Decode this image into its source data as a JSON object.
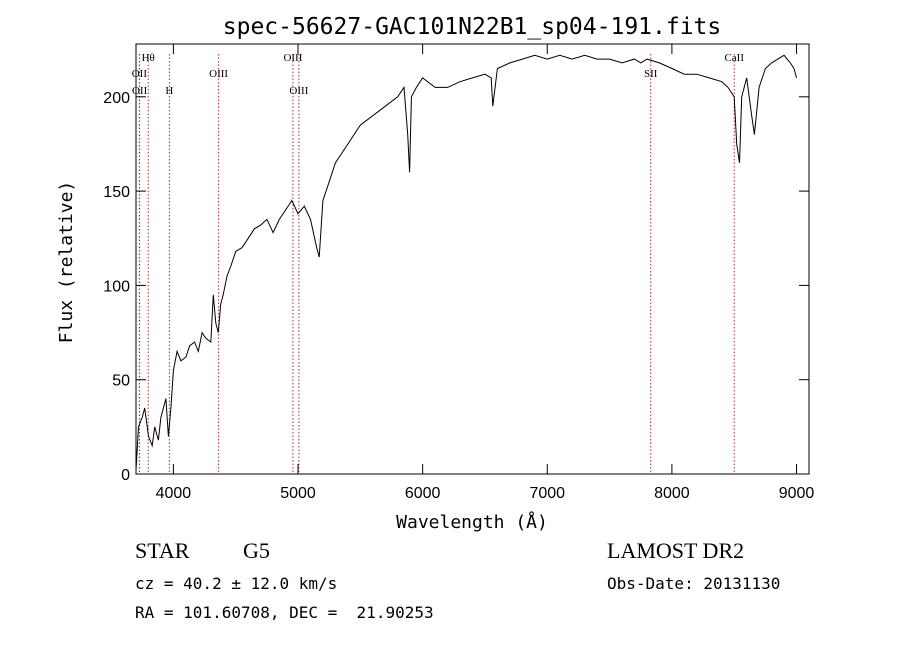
{
  "title": "spec-56627-GAC101N22B1_sp04-191.fits",
  "info": {
    "class": "STAR",
    "subclass": "G5",
    "survey": "LAMOST DR2",
    "cz": "cz = 40.2 ± 12.0 km/s",
    "obs_date": "Obs-Date: 20131130",
    "radec": "RA = 101.60708, DEC =  21.90253"
  },
  "chart_data": {
    "type": "line",
    "xlabel": "Wavelength (Å)",
    "ylabel": "Flux (relative)",
    "xlim": [
      3700,
      9100
    ],
    "ylim": [
      0,
      228
    ],
    "x_ticks": [
      4000,
      5000,
      6000,
      7000,
      8000,
      9000
    ],
    "y_ticks": [
      0,
      50,
      100,
      150,
      200
    ],
    "grid": false,
    "series": [
      {
        "color": "#000000",
        "x": [
          3700,
          3720,
          3750,
          3770,
          3800,
          3830,
          3850,
          3880,
          3900,
          3920,
          3940,
          3960,
          3980,
          4000,
          4030,
          4060,
          4100,
          4130,
          4170,
          4200,
          4230,
          4260,
          4300,
          4320,
          4340,
          4360,
          4380,
          4400,
          4430,
          4460,
          4500,
          4550,
          4600,
          4650,
          4700,
          4750,
          4800,
          4850,
          4900,
          4950,
          5000,
          5050,
          5100,
          5150,
          5170,
          5200,
          5250,
          5300,
          5400,
          5500,
          5600,
          5700,
          5800,
          5850,
          5880,
          5895,
          5910,
          5950,
          6000,
          6100,
          6200,
          6300,
          6400,
          6500,
          6550,
          6563,
          6600,
          6700,
          6800,
          6900,
          7000,
          7100,
          7200,
          7300,
          7400,
          7500,
          7600,
          7700,
          7750,
          7800,
          7900,
          8000,
          8100,
          8200,
          8300,
          8400,
          8450,
          8500,
          8520,
          8542,
          8560,
          8600,
          8640,
          8662,
          8700,
          8750,
          8800,
          8850,
          8900,
          8950,
          8980,
          9000
        ],
        "y": [
          2,
          25,
          30,
          35,
          20,
          15,
          25,
          18,
          30,
          35,
          40,
          20,
          35,
          55,
          65,
          60,
          62,
          68,
          70,
          65,
          75,
          72,
          70,
          95,
          80,
          75,
          90,
          95,
          105,
          110,
          118,
          120,
          125,
          130,
          132,
          135,
          128,
          135,
          140,
          145,
          138,
          142,
          135,
          120,
          115,
          145,
          155,
          165,
          175,
          185,
          190,
          195,
          200,
          205,
          180,
          160,
          200,
          205,
          210,
          205,
          205,
          208,
          210,
          212,
          210,
          195,
          215,
          218,
          220,
          222,
          220,
          222,
          220,
          222,
          220,
          220,
          218,
          220,
          218,
          220,
          218,
          215,
          212,
          212,
          210,
          208,
          205,
          200,
          175,
          165,
          200,
          210,
          190,
          180,
          205,
          215,
          218,
          220,
          222,
          218,
          215,
          210
        ]
      }
    ],
    "annotations": [
      {
        "label": "Hθ",
        "x": 3798,
        "row": "top"
      },
      {
        "label": "OII",
        "x": 3727,
        "row": "mid"
      },
      {
        "label": "OII",
        "x": 3729,
        "row": "low"
      },
      {
        "label": "H",
        "x": 3968,
        "row": "low"
      },
      {
        "label": "OIII",
        "x": 4363,
        "row": "mid"
      },
      {
        "label": "OIII",
        "x": 4959,
        "row": "top"
      },
      {
        "label": "OIII",
        "x": 5007,
        "row": "low"
      },
      {
        "label": "SII",
        "x": 7830,
        "row": "mid"
      },
      {
        "label": "CaII",
        "x": 8500,
        "row": "top"
      }
    ]
  }
}
